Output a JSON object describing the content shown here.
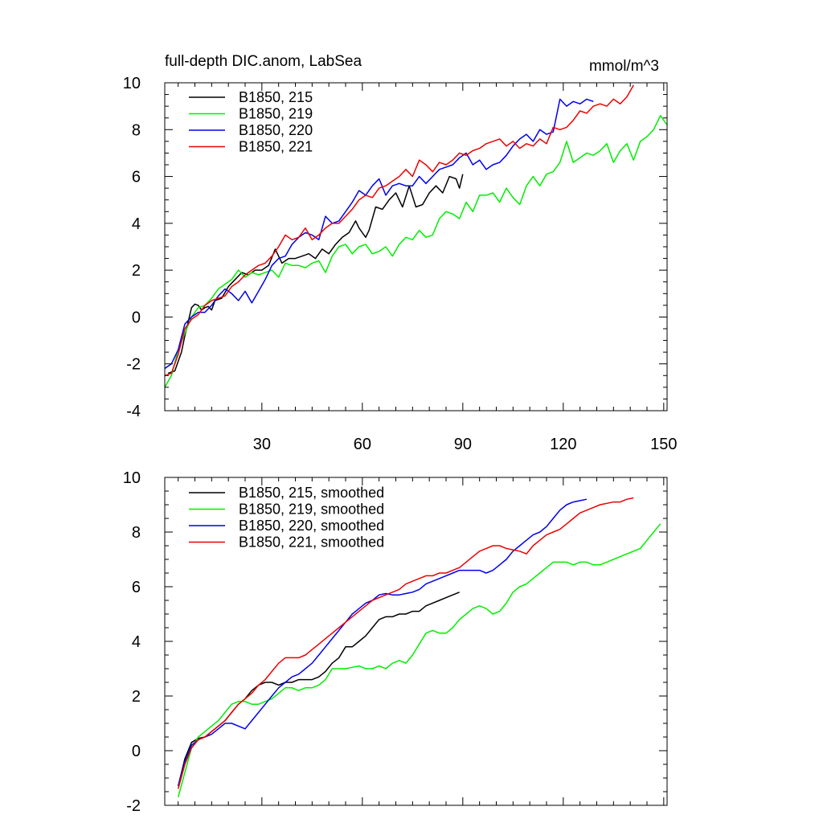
{
  "chart_data": [
    {
      "type": "line",
      "title": "full-depth DIC.anom, LabSea",
      "units": "mmol/m^3",
      "xlim": [
        1,
        151
      ],
      "ylim": [
        -4,
        10
      ],
      "xticks": [
        30,
        60,
        90,
        120,
        150
      ],
      "xticklabels": [
        "30",
        "60",
        "90",
        "120",
        "150"
      ],
      "yticks": [
        -4,
        -2,
        0,
        2,
        4,
        6,
        8,
        10
      ],
      "yticklabels": [
        "-4",
        "-2",
        "0",
        "2",
        "4",
        "6",
        "8",
        "10"
      ],
      "legend_position": "top-left",
      "series": [
        {
          "name": "B1850, 215",
          "color": "#000000",
          "x": [
            2,
            4,
            6,
            7,
            8,
            9,
            10,
            11,
            12,
            13,
            14,
            15,
            16,
            18,
            20,
            22,
            24,
            26,
            28,
            30,
            32,
            34,
            36,
            38,
            40,
            42,
            44,
            46,
            48,
            50,
            52,
            54,
            56,
            58,
            59,
            60,
            61,
            62,
            64,
            66,
            68,
            70,
            72,
            74,
            76,
            78,
            80,
            82,
            84,
            86,
            88,
            89,
            90
          ],
          "y": [
            -2.4,
            -2.3,
            -1.5,
            -0.8,
            -0.2,
            0.4,
            0.55,
            0.5,
            0.3,
            0.4,
            0.45,
            0.3,
            0.7,
            0.8,
            1.3,
            1.6,
            1.9,
            1.8,
            2.0,
            2.0,
            2.2,
            2.9,
            2.3,
            2.5,
            2.5,
            2.6,
            2.7,
            2.5,
            2.9,
            2.7,
            3.1,
            3.4,
            3.6,
            4.1,
            3.8,
            3.6,
            3.4,
            3.7,
            4.7,
            4.6,
            5.0,
            5.3,
            4.7,
            5.6,
            4.7,
            4.8,
            5.3,
            5.6,
            5.3,
            6.0,
            5.9,
            5.5,
            6.1
          ]
        },
        {
          "name": "B1850, 219",
          "color": "#00ee00",
          "x": [
            1,
            3,
            5,
            7,
            9,
            11,
            13,
            15,
            17,
            19,
            21,
            23,
            25,
            27,
            29,
            31,
            33,
            35,
            37,
            39,
            41,
            43,
            45,
            47,
            49,
            51,
            53,
            55,
            57,
            59,
            61,
            63,
            65,
            67,
            69,
            71,
            73,
            75,
            77,
            79,
            81,
            83,
            85,
            87,
            89,
            91,
            93,
            95,
            97,
            99,
            101,
            103,
            105,
            107,
            109,
            111,
            113,
            115,
            117,
            119,
            121,
            123,
            125,
            127,
            129,
            131,
            133,
            135,
            137,
            139,
            141,
            143,
            145,
            147,
            149,
            151
          ],
          "y": [
            -3.0,
            -2.5,
            -1.4,
            -0.7,
            0.0,
            0.4,
            0.5,
            0.8,
            1.2,
            1.4,
            1.6,
            2.0,
            1.7,
            1.9,
            1.8,
            1.9,
            2.0,
            1.7,
            2.3,
            2.2,
            2.2,
            2.1,
            2.3,
            2.4,
            1.9,
            2.6,
            3.0,
            3.1,
            2.7,
            3.0,
            3.1,
            2.7,
            2.8,
            3.0,
            2.6,
            3.1,
            3.4,
            3.3,
            3.7,
            3.4,
            3.5,
            4.2,
            4.5,
            4.4,
            4.2,
            4.9,
            4.5,
            5.2,
            5.2,
            5.3,
            4.9,
            5.5,
            5.1,
            4.8,
            5.6,
            6.0,
            5.6,
            6.1,
            6.2,
            6.6,
            7.5,
            6.6,
            6.8,
            7.0,
            6.9,
            7.1,
            7.4,
            6.6,
            7.1,
            7.4,
            6.7,
            7.5,
            7.7,
            8.0,
            8.6,
            8.2
          ]
        },
        {
          "name": "B1850, 220",
          "color": "#0000ee",
          "x": [
            1,
            3,
            5,
            7,
            9,
            11,
            13,
            15,
            17,
            19,
            21,
            23,
            25,
            27,
            29,
            31,
            33,
            35,
            37,
            39,
            41,
            43,
            45,
            47,
            49,
            51,
            53,
            55,
            57,
            59,
            61,
            63,
            65,
            67,
            69,
            71,
            73,
            75,
            77,
            79,
            81,
            83,
            85,
            87,
            89,
            91,
            93,
            95,
            97,
            99,
            101,
            103,
            105,
            107,
            109,
            111,
            113,
            115,
            117,
            119,
            121,
            123,
            125,
            127,
            129
          ],
          "y": [
            -2.2,
            -2.0,
            -1.4,
            -0.3,
            0.0,
            0.2,
            0.2,
            0.5,
            0.9,
            1.2,
            1.0,
            0.7,
            1.1,
            0.6,
            1.1,
            1.6,
            2.2,
            2.5,
            2.6,
            3.1,
            3.4,
            3.6,
            3.5,
            3.3,
            4.3,
            4.0,
            4.1,
            4.5,
            4.9,
            5.4,
            5.2,
            5.6,
            5.9,
            5.2,
            5.6,
            5.7,
            5.6,
            5.6,
            6.0,
            5.7,
            6.0,
            6.3,
            6.4,
            6.5,
            6.8,
            7.0,
            6.5,
            6.7,
            6.3,
            6.5,
            6.6,
            6.9,
            7.3,
            7.6,
            7.8,
            7.5,
            8.0,
            7.8,
            7.9,
            9.3,
            9.0,
            9.2,
            9.1,
            9.3,
            9.2
          ]
        },
        {
          "name": "B1850, 221",
          "color": "#ee0000",
          "x": [
            1,
            3,
            5,
            7,
            9,
            11,
            13,
            15,
            17,
            19,
            21,
            23,
            25,
            27,
            29,
            31,
            33,
            35,
            37,
            39,
            41,
            43,
            45,
            47,
            49,
            51,
            53,
            55,
            57,
            59,
            61,
            63,
            65,
            67,
            69,
            71,
            73,
            75,
            77,
            79,
            81,
            83,
            85,
            87,
            89,
            91,
            93,
            95,
            97,
            99,
            101,
            103,
            105,
            107,
            109,
            111,
            113,
            115,
            117,
            119,
            121,
            123,
            125,
            127,
            129,
            131,
            133,
            135,
            137,
            139,
            141
          ],
          "y": [
            -2.5,
            -2.4,
            -1.6,
            -0.5,
            -0.1,
            0.1,
            0.5,
            0.7,
            0.8,
            0.9,
            1.3,
            1.5,
            1.8,
            2.0,
            2.2,
            2.3,
            2.6,
            3.0,
            3.5,
            3.3,
            3.4,
            3.8,
            3.3,
            3.5,
            3.8,
            4.0,
            4.0,
            4.3,
            4.6,
            5.0,
            5.2,
            5.1,
            5.5,
            5.6,
            5.8,
            6.0,
            6.3,
            6.0,
            6.7,
            6.5,
            6.2,
            6.6,
            6.5,
            6.7,
            7.0,
            6.9,
            7.1,
            7.2,
            7.4,
            7.5,
            7.6,
            7.3,
            7.5,
            7.2,
            7.4,
            7.3,
            7.6,
            7.4,
            8.1,
            8.0,
            8.1,
            8.4,
            8.8,
            8.7,
            9.0,
            9.1,
            9.0,
            9.3,
            9.1,
            9.4,
            9.9
          ]
        }
      ]
    },
    {
      "type": "line",
      "xlim": [
        1,
        151
      ],
      "ylim": [
        -2,
        10
      ],
      "xticks": [
        30,
        60,
        90,
        120,
        150
      ],
      "yticks": [
        -2,
        0,
        2,
        4,
        6,
        8,
        10
      ],
      "yticklabels": [
        "-2",
        "0",
        "2",
        "4",
        "6",
        "8",
        "10"
      ],
      "legend_position": "top-left",
      "series": [
        {
          "name": "B1850, 215, smoothed",
          "color": "#000000",
          "x": [
            5,
            7,
            9,
            11,
            13,
            15,
            17,
            19,
            21,
            23,
            25,
            27,
            29,
            31,
            33,
            35,
            37,
            39,
            41,
            43,
            45,
            47,
            49,
            51,
            53,
            55,
            57,
            59,
            61,
            63,
            65,
            67,
            69,
            71,
            73,
            75,
            77,
            79,
            81,
            83,
            85,
            87,
            89
          ],
          "y": [
            -1.3,
            -0.3,
            0.3,
            0.45,
            0.5,
            0.7,
            0.9,
            1.1,
            1.4,
            1.7,
            1.9,
            2.2,
            2.4,
            2.5,
            2.5,
            2.4,
            2.5,
            2.5,
            2.6,
            2.6,
            2.6,
            2.7,
            2.9,
            3.2,
            3.4,
            3.8,
            3.8,
            4.0,
            4.2,
            4.5,
            4.8,
            4.9,
            4.9,
            5.0,
            5.0,
            5.1,
            5.1,
            5.3,
            5.4,
            5.5,
            5.6,
            5.7,
            5.8
          ]
        },
        {
          "name": "B1850, 219, smoothed",
          "color": "#00ee00",
          "x": [
            5,
            7,
            9,
            11,
            13,
            15,
            17,
            19,
            21,
            23,
            25,
            27,
            29,
            31,
            33,
            35,
            37,
            39,
            41,
            43,
            45,
            47,
            49,
            51,
            53,
            55,
            57,
            59,
            61,
            63,
            65,
            67,
            69,
            71,
            73,
            75,
            77,
            79,
            81,
            83,
            85,
            87,
            89,
            91,
            93,
            95,
            97,
            99,
            101,
            103,
            105,
            107,
            109,
            111,
            113,
            115,
            117,
            119,
            121,
            123,
            125,
            127,
            129,
            131,
            133,
            135,
            137,
            139,
            141,
            143,
            145,
            147,
            149
          ],
          "y": [
            -1.7,
            -0.8,
            0.1,
            0.5,
            0.7,
            0.9,
            1.1,
            1.4,
            1.7,
            1.8,
            1.8,
            1.7,
            1.7,
            1.8,
            1.9,
            2.1,
            2.3,
            2.3,
            2.2,
            2.3,
            2.3,
            2.4,
            2.6,
            3.0,
            3.0,
            3.0,
            3.05,
            3.1,
            3.0,
            3.0,
            3.1,
            3.0,
            3.2,
            3.3,
            3.2,
            3.5,
            3.9,
            4.3,
            4.4,
            4.3,
            4.3,
            4.5,
            4.8,
            5.0,
            5.2,
            5.3,
            5.2,
            5.0,
            5.1,
            5.4,
            5.8,
            6.0,
            6.1,
            6.3,
            6.5,
            6.7,
            6.9,
            6.9,
            6.9,
            6.8,
            6.9,
            6.9,
            6.8,
            6.8,
            6.9,
            7.0,
            7.1,
            7.2,
            7.3,
            7.4,
            7.7,
            8.0,
            8.3
          ]
        },
        {
          "name": "B1850, 220, smoothed",
          "color": "#0000ee",
          "x": [
            5,
            7,
            9,
            11,
            13,
            15,
            17,
            19,
            21,
            23,
            25,
            27,
            29,
            31,
            33,
            35,
            37,
            39,
            41,
            43,
            45,
            47,
            49,
            51,
            53,
            55,
            57,
            59,
            61,
            63,
            65,
            67,
            69,
            71,
            73,
            75,
            77,
            79,
            81,
            83,
            85,
            87,
            89,
            91,
            93,
            95,
            97,
            99,
            101,
            103,
            105,
            107,
            109,
            111,
            113,
            115,
            117,
            119,
            121,
            123,
            125,
            127
          ],
          "y": [
            -1.3,
            -0.4,
            0.2,
            0.4,
            0.5,
            0.6,
            0.8,
            1.0,
            1.0,
            0.9,
            0.8,
            1.1,
            1.4,
            1.7,
            2.0,
            2.3,
            2.5,
            2.7,
            2.8,
            3.0,
            3.2,
            3.5,
            3.8,
            4.1,
            4.4,
            4.7,
            5.0,
            5.2,
            5.4,
            5.5,
            5.7,
            5.75,
            5.7,
            5.7,
            5.75,
            5.8,
            5.9,
            6.1,
            6.2,
            6.3,
            6.4,
            6.5,
            6.6,
            6.6,
            6.6,
            6.6,
            6.5,
            6.6,
            6.8,
            7.0,
            7.3,
            7.5,
            7.7,
            7.9,
            8.0,
            8.2,
            8.5,
            8.8,
            9.0,
            9.1,
            9.15,
            9.2
          ]
        },
        {
          "name": "B1850, 221, smoothed",
          "color": "#ee0000",
          "x": [
            5,
            7,
            9,
            11,
            13,
            15,
            17,
            19,
            21,
            23,
            25,
            27,
            29,
            31,
            33,
            35,
            37,
            39,
            41,
            43,
            45,
            47,
            49,
            51,
            53,
            55,
            57,
            59,
            61,
            63,
            65,
            67,
            69,
            71,
            73,
            75,
            77,
            79,
            81,
            83,
            85,
            87,
            89,
            91,
            93,
            95,
            97,
            99,
            101,
            103,
            105,
            107,
            109,
            111,
            113,
            115,
            117,
            119,
            121,
            123,
            125,
            127,
            129,
            131,
            133,
            135,
            137,
            139,
            141
          ],
          "y": [
            -1.4,
            -0.5,
            0.1,
            0.4,
            0.5,
            0.7,
            0.9,
            1.1,
            1.4,
            1.7,
            1.9,
            2.1,
            2.4,
            2.6,
            2.9,
            3.2,
            3.4,
            3.4,
            3.4,
            3.5,
            3.7,
            3.9,
            4.1,
            4.3,
            4.5,
            4.7,
            4.9,
            5.1,
            5.3,
            5.5,
            5.6,
            5.7,
            5.8,
            5.9,
            6.1,
            6.2,
            6.3,
            6.4,
            6.4,
            6.5,
            6.5,
            6.6,
            6.7,
            6.9,
            7.1,
            7.3,
            7.4,
            7.5,
            7.5,
            7.4,
            7.35,
            7.3,
            7.2,
            7.5,
            7.7,
            7.9,
            8.0,
            8.1,
            8.3,
            8.5,
            8.7,
            8.8,
            8.9,
            9.0,
            9.05,
            9.1,
            9.1,
            9.2,
            9.25
          ]
        }
      ]
    }
  ]
}
